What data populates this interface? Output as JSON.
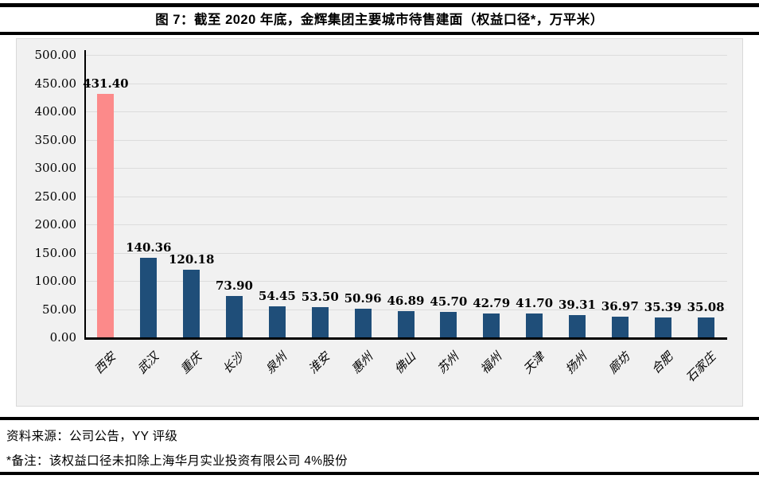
{
  "figure": {
    "title": "图 7：截至 2020 年底，金辉集团主要城市待售建面（权益口径*，万平米）",
    "source_line": "资料来源：公司公告，YY 评级",
    "note_line": "*备注：该权益口径未扣除上海华月实业投资有限公司 4%股份"
  },
  "chart_data": {
    "type": "bar",
    "title": "图 7：截至 2020 年底，金辉集团主要城市待售建面（权益口径*，万平米）",
    "unit": "万平米",
    "categories": [
      "西安",
      "武汉",
      "重庆",
      "长沙",
      "泉州",
      "淮安",
      "惠州",
      "佛山",
      "苏州",
      "福州",
      "天津",
      "扬州",
      "廊坊",
      "合肥",
      "石家庄"
    ],
    "values": [
      431.4,
      140.36,
      120.18,
      73.9,
      54.45,
      53.5,
      50.96,
      46.89,
      45.7,
      42.79,
      41.7,
      39.31,
      36.97,
      35.39,
      35.08
    ],
    "ylim": [
      0,
      500
    ],
    "ytick_step": 50,
    "ytick_decimals": 2,
    "value_label_decimals": 2,
    "grid": true,
    "legend": false,
    "highlight_index": 0,
    "highlight_color": "#FC8A8A",
    "bar_color": "#1F4E79",
    "plot_background": "#F1F1F1",
    "gridline_color": "#DCDCDC",
    "axis_color": "#000000"
  }
}
